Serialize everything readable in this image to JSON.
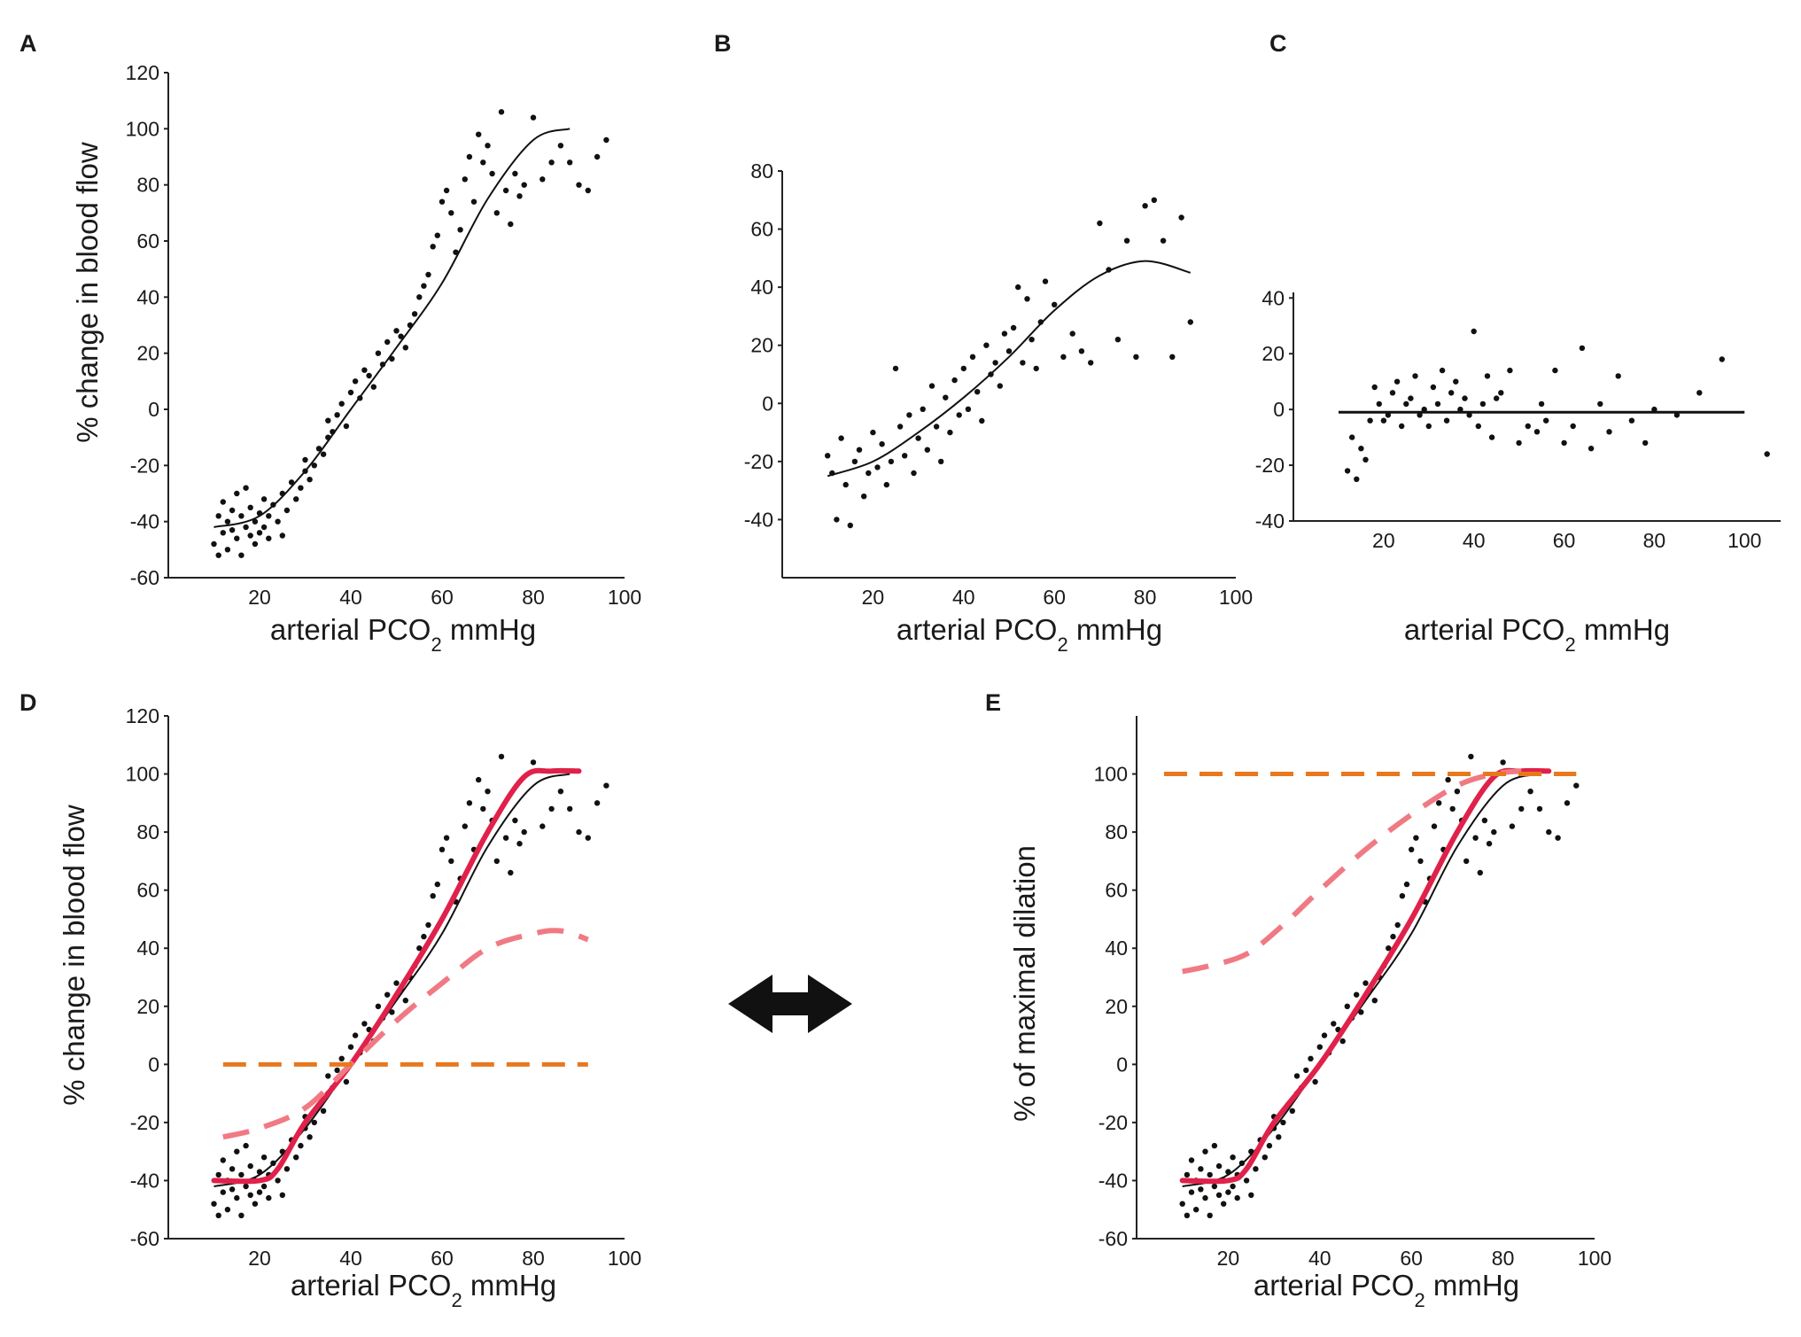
{
  "figure": {
    "x_label": "arterial PCO",
    "x_label_sub": "2",
    "x_label_unit": " mmHg",
    "arrow_icon": "double-headed-arrow-icon",
    "colors": {
      "points": "#111111",
      "fit_black": "#111111",
      "fit_red": "#e0214a",
      "dashed_pink": "#f07a84",
      "dashed_orange": "#e8781e"
    }
  },
  "chart_data": [
    {
      "panel": "A",
      "type": "scatter",
      "ylabel": "% change in blood flow",
      "xlim": [
        0,
        100
      ],
      "ylim": [
        -60,
        120
      ],
      "xticks": [
        20,
        40,
        60,
        80,
        100
      ],
      "yticks": [
        -60,
        -40,
        -20,
        0,
        20,
        40,
        60,
        80,
        100,
        120
      ],
      "fit": {
        "name": "sigmoid fit",
        "x": [
          10,
          20,
          30,
          40,
          50,
          60,
          70,
          80,
          88
        ],
        "y": [
          -42,
          -38,
          -22,
          0,
          22,
          45,
          75,
          96,
          100
        ]
      },
      "scatter": {
        "x": [
          10,
          11,
          11,
          12,
          12,
          13,
          13,
          14,
          14,
          15,
          15,
          16,
          16,
          17,
          17,
          18,
          18,
          19,
          19,
          20,
          20,
          21,
          21,
          22,
          22,
          23,
          24,
          25,
          25,
          26,
          27,
          28,
          29,
          30,
          30,
          31,
          32,
          33,
          34,
          35,
          35,
          36,
          37,
          38,
          39,
          40,
          41,
          42,
          43,
          44,
          45,
          46,
          47,
          48,
          49,
          50,
          51,
          52,
          53,
          54,
          55,
          56,
          57,
          58,
          59,
          60,
          61,
          62,
          63,
          64,
          65,
          66,
          67,
          68,
          69,
          70,
          71,
          72,
          73,
          74,
          75,
          76,
          77,
          78,
          80,
          82,
          84,
          86,
          88,
          90,
          92,
          94,
          96
        ],
        "y": [
          -48,
          -52,
          -38,
          -44,
          -33,
          -40,
          -50,
          -36,
          -43,
          -30,
          -46,
          -38,
          -52,
          -42,
          -28,
          -45,
          -35,
          -40,
          -48,
          -44,
          -37,
          -42,
          -32,
          -46,
          -38,
          -34,
          -40,
          -45,
          -30,
          -36,
          -26,
          -32,
          -28,
          -22,
          -18,
          -25,
          -20,
          -14,
          -16,
          -10,
          -4,
          -8,
          -2,
          2,
          -6,
          6,
          10,
          4,
          14,
          12,
          8,
          20,
          16,
          24,
          18,
          28,
          26,
          22,
          30,
          34,
          40,
          44,
          48,
          58,
          62,
          74,
          78,
          70,
          56,
          64,
          82,
          90,
          74,
          98,
          88,
          94,
          84,
          70,
          106,
          78,
          66,
          84,
          76,
          80,
          104,
          82,
          88,
          94,
          88,
          80,
          78,
          90,
          96
        ]
      },
      "series": []
    },
    {
      "panel": "B",
      "type": "scatter",
      "ylabel": "",
      "xlim": [
        0,
        100
      ],
      "ylim": [
        -60,
        80
      ],
      "xticks": [
        20,
        40,
        60,
        80,
        100
      ],
      "yticks": [
        -40,
        -20,
        0,
        20,
        40,
        60,
        80
      ],
      "fit": {
        "name": "sigmoid fit",
        "x": [
          10,
          20,
          30,
          40,
          50,
          60,
          70,
          80,
          90
        ],
        "y": [
          -25,
          -20,
          -10,
          2,
          16,
          32,
          44,
          49,
          45
        ]
      },
      "scatter": {
        "x": [
          10,
          11,
          12,
          13,
          14,
          15,
          16,
          17,
          18,
          19,
          20,
          21,
          22,
          23,
          24,
          25,
          26,
          27,
          28,
          29,
          30,
          31,
          32,
          33,
          34,
          35,
          36,
          37,
          38,
          39,
          40,
          41,
          42,
          43,
          44,
          45,
          46,
          47,
          48,
          49,
          50,
          51,
          52,
          53,
          54,
          55,
          56,
          57,
          58,
          60,
          62,
          64,
          66,
          68,
          70,
          72,
          74,
          76,
          78,
          80,
          82,
          84,
          86,
          88,
          90
        ],
        "y": [
          -18,
          -24,
          -40,
          -12,
          -28,
          -42,
          -20,
          -16,
          -32,
          -24,
          -10,
          -22,
          -14,
          -28,
          -20,
          12,
          -8,
          -18,
          -4,
          -24,
          -12,
          -2,
          -16,
          6,
          -8,
          -20,
          2,
          -10,
          8,
          -4,
          12,
          -2,
          16,
          4,
          -6,
          20,
          10,
          14,
          6,
          24,
          18,
          26,
          40,
          14,
          36,
          22,
          12,
          28,
          42,
          34,
          16,
          24,
          18,
          14,
          62,
          46,
          22,
          56,
          16,
          68,
          70,
          56,
          16,
          64,
          28
        ]
      },
      "series": []
    },
    {
      "panel": "C",
      "type": "scatter",
      "ylabel": "",
      "xlim": [
        0,
        108
      ],
      "ylim": [
        -40,
        42
      ],
      "xticks": [
        20,
        40,
        60,
        80,
        100
      ],
      "yticks": [
        -40,
        -20,
        0,
        20,
        40
      ],
      "fit": {
        "name": "flat fit",
        "x": [
          10,
          100
        ],
        "y": [
          -1,
          -1
        ]
      },
      "scatter": {
        "x": [
          12,
          13,
          14,
          15,
          16,
          17,
          18,
          19,
          20,
          21,
          22,
          23,
          24,
          25,
          26,
          27,
          28,
          29,
          30,
          31,
          32,
          33,
          34,
          35,
          36,
          37,
          38,
          39,
          40,
          41,
          42,
          43,
          44,
          45,
          46,
          48,
          50,
          52,
          54,
          55,
          56,
          58,
          60,
          62,
          64,
          66,
          68,
          70,
          72,
          75,
          78,
          80,
          85,
          90,
          95,
          105
        ],
        "y": [
          -22,
          -10,
          -25,
          -14,
          -18,
          -4,
          8,
          2,
          -4,
          -2,
          6,
          10,
          -6,
          2,
          4,
          12,
          -2,
          0,
          -6,
          8,
          2,
          14,
          -4,
          6,
          10,
          0,
          4,
          -2,
          28,
          -6,
          2,
          12,
          -10,
          4,
          6,
          14,
          -12,
          -6,
          -8,
          2,
          -4,
          14,
          -12,
          -6,
          22,
          -14,
          2,
          -8,
          12,
          -4,
          -12,
          0,
          -2,
          6,
          18,
          -16
        ]
      },
      "series": []
    },
    {
      "panel": "D",
      "type": "scatter",
      "ylabel": "% change in blood flow",
      "xlim": [
        0,
        100
      ],
      "ylim": [
        -60,
        120
      ],
      "xticks": [
        20,
        40,
        60,
        80,
        100
      ],
      "yticks": [
        -60,
        -40,
        -20,
        0,
        20,
        40,
        60,
        80,
        100,
        120
      ],
      "fit": {
        "name": "sigmoid fit",
        "x": [
          10,
          20,
          30,
          40,
          50,
          60,
          70,
          80,
          88
        ],
        "y": [
          -42,
          -38,
          -22,
          0,
          22,
          45,
          75,
          96,
          100
        ]
      },
      "scatter": {
        "x": [
          10,
          11,
          11,
          12,
          12,
          13,
          13,
          14,
          14,
          15,
          15,
          16,
          16,
          17,
          17,
          18,
          18,
          19,
          19,
          20,
          20,
          21,
          21,
          22,
          22,
          23,
          24,
          25,
          25,
          26,
          27,
          28,
          29,
          30,
          30,
          31,
          32,
          33,
          34,
          35,
          35,
          36,
          37,
          38,
          39,
          40,
          41,
          42,
          43,
          44,
          45,
          46,
          47,
          48,
          49,
          50,
          51,
          52,
          53,
          54,
          55,
          56,
          57,
          58,
          59,
          60,
          61,
          62,
          63,
          64,
          65,
          66,
          67,
          68,
          69,
          70,
          71,
          72,
          73,
          74,
          75,
          76,
          77,
          78,
          80,
          82,
          84,
          86,
          88,
          90,
          92,
          94,
          96
        ],
        "y": [
          -48,
          -52,
          -38,
          -44,
          -33,
          -40,
          -50,
          -36,
          -43,
          -30,
          -46,
          -38,
          -52,
          -42,
          -28,
          -45,
          -35,
          -40,
          -48,
          -44,
          -37,
          -42,
          -32,
          -46,
          -38,
          -34,
          -40,
          -45,
          -30,
          -36,
          -26,
          -32,
          -28,
          -22,
          -18,
          -25,
          -20,
          -14,
          -16,
          -10,
          -4,
          -8,
          -2,
          2,
          -6,
          6,
          10,
          4,
          14,
          12,
          8,
          20,
          16,
          24,
          18,
          28,
          26,
          22,
          30,
          34,
          40,
          44,
          48,
          58,
          62,
          74,
          78,
          70,
          56,
          64,
          82,
          90,
          74,
          98,
          88,
          94,
          84,
          70,
          106,
          78,
          66,
          84,
          76,
          80,
          104,
          82,
          88,
          94,
          88,
          80,
          78,
          90,
          96
        ]
      },
      "series": [
        {
          "name": "red fit",
          "style": "solid-red",
          "x": [
            10,
            20,
            24,
            30,
            40,
            50,
            60,
            70,
            78,
            84,
            90
          ],
          "y": [
            -40,
            -40,
            -36,
            -20,
            0,
            24,
            50,
            80,
            99,
            101,
            101
          ]
        },
        {
          "name": "dashed pink",
          "style": "dashed-pink",
          "x": [
            12,
            20,
            30,
            40,
            50,
            60,
            70,
            80,
            86,
            92
          ],
          "y": [
            -25,
            -22,
            -15,
            0,
            15,
            28,
            40,
            45,
            46,
            43
          ]
        },
        {
          "name": "dashed orange",
          "style": "dashed-orange",
          "x": [
            12,
            92
          ],
          "y": [
            0,
            0
          ]
        }
      ]
    },
    {
      "panel": "E",
      "type": "scatter",
      "ylabel": "% of maximal  dilation",
      "xlim": [
        0,
        100
      ],
      "ylim": [
        -60,
        120
      ],
      "xticks": [
        20,
        40,
        60,
        80,
        100
      ],
      "yticks": [
        -60,
        -40,
        -20,
        0,
        20,
        40,
        60,
        80,
        100
      ],
      "fit": {
        "name": "sigmoid fit",
        "x": [
          10,
          20,
          30,
          40,
          50,
          60,
          70,
          80,
          88
        ],
        "y": [
          -42,
          -38,
          -22,
          0,
          22,
          45,
          75,
          96,
          100
        ]
      },
      "scatter": {
        "x": [
          10,
          11,
          11,
          12,
          12,
          13,
          13,
          14,
          14,
          15,
          15,
          16,
          16,
          17,
          17,
          18,
          18,
          19,
          19,
          20,
          20,
          21,
          21,
          22,
          22,
          23,
          24,
          25,
          25,
          26,
          27,
          28,
          29,
          30,
          30,
          31,
          32,
          33,
          34,
          35,
          35,
          36,
          37,
          38,
          39,
          40,
          41,
          42,
          43,
          44,
          45,
          46,
          47,
          48,
          49,
          50,
          51,
          52,
          53,
          54,
          55,
          56,
          57,
          58,
          59,
          60,
          61,
          62,
          63,
          64,
          65,
          66,
          67,
          68,
          69,
          70,
          71,
          72,
          73,
          74,
          75,
          76,
          77,
          78,
          80,
          82,
          84,
          86,
          88,
          90,
          92,
          94,
          96
        ],
        "y": [
          -48,
          -52,
          -38,
          -44,
          -33,
          -40,
          -50,
          -36,
          -43,
          -30,
          -46,
          -38,
          -52,
          -42,
          -28,
          -45,
          -35,
          -40,
          -48,
          -44,
          -37,
          -42,
          -32,
          -46,
          -38,
          -34,
          -40,
          -45,
          -30,
          -36,
          -26,
          -32,
          -28,
          -22,
          -18,
          -25,
          -20,
          -14,
          -16,
          -10,
          -4,
          -8,
          -2,
          2,
          -6,
          6,
          10,
          4,
          14,
          12,
          8,
          20,
          16,
          24,
          18,
          28,
          26,
          22,
          30,
          34,
          40,
          44,
          48,
          58,
          62,
          74,
          78,
          70,
          56,
          64,
          82,
          90,
          74,
          98,
          88,
          94,
          84,
          70,
          106,
          78,
          66,
          84,
          76,
          80,
          104,
          82,
          88,
          94,
          88,
          80,
          78,
          90,
          96
        ]
      },
      "series": [
        {
          "name": "red fit",
          "style": "solid-red",
          "x": [
            10,
            20,
            24,
            30,
            40,
            50,
            60,
            70,
            78,
            84,
            90
          ],
          "y": [
            -40,
            -40,
            -36,
            -20,
            0,
            24,
            50,
            80,
            99,
            101,
            101
          ]
        },
        {
          "name": "dashed pink",
          "style": "dashed-pink",
          "x": [
            10,
            16,
            24,
            32,
            40,
            50,
            60,
            70,
            78,
            84
          ],
          "y": [
            32,
            34,
            38,
            48,
            60,
            74,
            86,
            96,
            100,
            101
          ]
        },
        {
          "name": "dashed orange",
          "style": "dashed-orange",
          "x": [
            6,
            96
          ],
          "y": [
            100,
            100
          ]
        }
      ]
    }
  ]
}
